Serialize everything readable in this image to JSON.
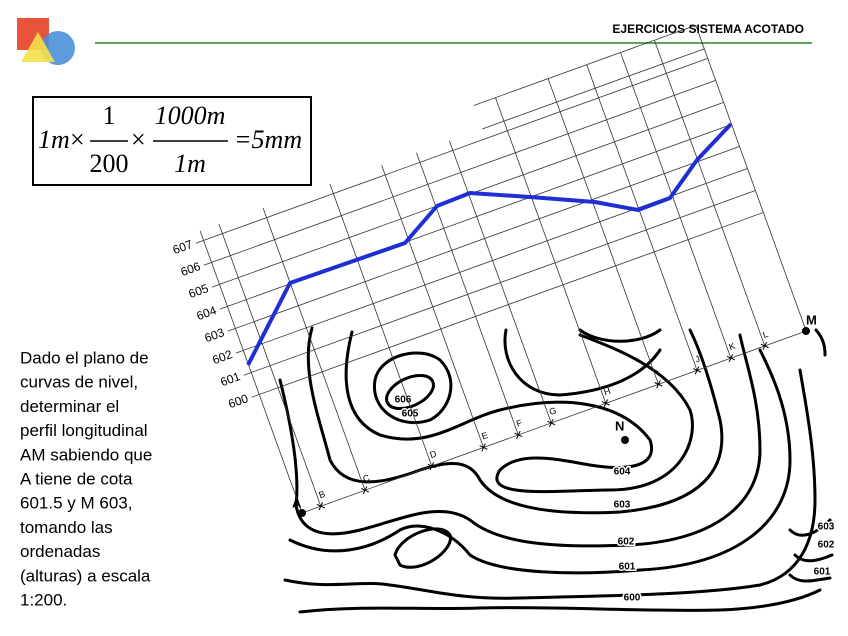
{
  "header": {
    "title": "EJERCICIOS SISTEMA ACOTADO"
  },
  "formula": {
    "term1": "1m",
    "times": "×",
    "frac1_num": "1",
    "frac1_den": "200",
    "frac2_num": "1000m",
    "frac2_den": "1m",
    "result": "=5mm"
  },
  "text": {
    "lines": [
      "Dado el plano de",
      "curvas de nivel,",
      "determinar el",
      "perfil longitudinal",
      "AM sabiendo que",
      "A tiene de cota",
      "601.5 y M 603,",
      "tomando las",
      "ordenadas",
      "(alturas) a escala",
      "1:200."
    ]
  },
  "profile": {
    "levels": [
      600,
      601,
      602,
      603,
      604,
      605,
      606,
      607
    ],
    "stations": [
      "B",
      "C",
      "D",
      "E",
      "F",
      "G",
      "H",
      "I",
      "J",
      "K",
      "L"
    ],
    "point_a": "A",
    "point_m": "M",
    "point_n": "N"
  },
  "contours": {
    "labels": [
      "606",
      "605",
      "604",
      "603",
      "602",
      "601",
      "600",
      "603",
      "602",
      "601"
    ]
  }
}
